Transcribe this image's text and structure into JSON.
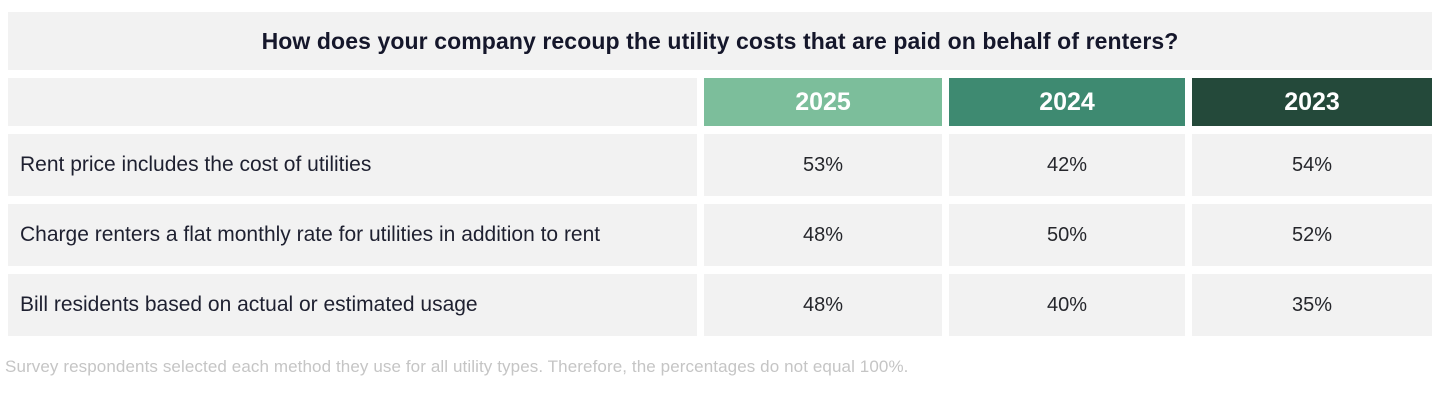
{
  "title": "How does your company recoup the utility costs that are paid on behalf of renters?",
  "footnote": "Survey respondents selected each method they use for all utility types. Therefore, the percentages do not equal 100%.",
  "colors": {
    "band_background": "#F2F2F2",
    "header_2025": "#7CBE9B",
    "header_2024": "#3E8A71",
    "header_2023": "#24493A",
    "header_text": "#FFFFFF",
    "title_text": "#15172B",
    "body_text": "#1E2030",
    "footnote_text": "#C5C5C5"
  },
  "chart_data": {
    "type": "table",
    "title": "How does your company recoup the utility costs that are paid on behalf of renters?",
    "columns": [
      "",
      "2025",
      "2024",
      "2023"
    ],
    "rows": [
      {
        "label": "Rent price includes the cost of utilities",
        "values": [
          "53%",
          "42%",
          "54%"
        ]
      },
      {
        "label": "Charge renters a flat monthly rate for utilities in addition to rent",
        "values": [
          "48%",
          "50%",
          "52%"
        ]
      },
      {
        "label": "Bill residents based on actual or estimated usage",
        "values": [
          "48%",
          "40%",
          "35%"
        ]
      }
    ],
    "rows_numeric": [
      {
        "label": "Rent price includes the cost of utilities",
        "2025": 53,
        "2024": 42,
        "2023": 54
      },
      {
        "label": "Charge renters a flat monthly rate for utilities in addition to rent",
        "2025": 48,
        "2024": 50,
        "2023": 52
      },
      {
        "label": "Bill residents based on actual or estimated usage",
        "2025": 48,
        "2024": 40,
        "2023": 35
      }
    ],
    "legend_position": "none",
    "grid": false
  }
}
